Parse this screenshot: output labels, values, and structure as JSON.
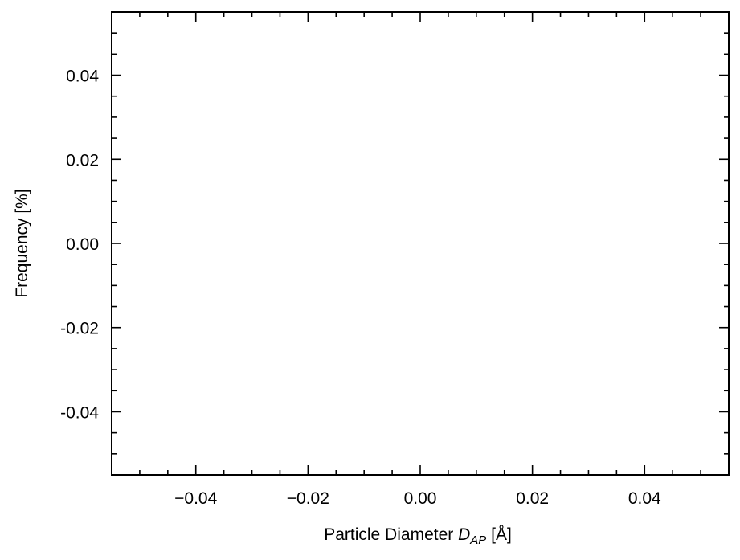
{
  "chart_data": {
    "type": "line",
    "title": "",
    "xlabel": {
      "text": "Particle Diameter ",
      "symbol": "D",
      "subscript": "AP",
      "unit": " [Å]"
    },
    "ylabel": "Frequency [%]",
    "xlim": [
      -0.055,
      0.055
    ],
    "ylim": [
      -0.055,
      0.055
    ],
    "x_ticks": [
      -0.04,
      -0.02,
      0.0,
      0.02,
      0.04
    ],
    "x_tick_labels": [
      "−0.04",
      "−0.02",
      "0.00",
      "0.02",
      "0.04"
    ],
    "y_ticks": [
      0.04,
      0.02,
      0.0,
      -0.02,
      -0.04
    ],
    "y_tick_labels": [
      "0.04",
      "0.02",
      "0.00",
      "-0.02",
      "-0.04"
    ],
    "minor_tick_step": 0.005,
    "grid": false,
    "series": [],
    "colors": {
      "axis": "#000000"
    }
  }
}
